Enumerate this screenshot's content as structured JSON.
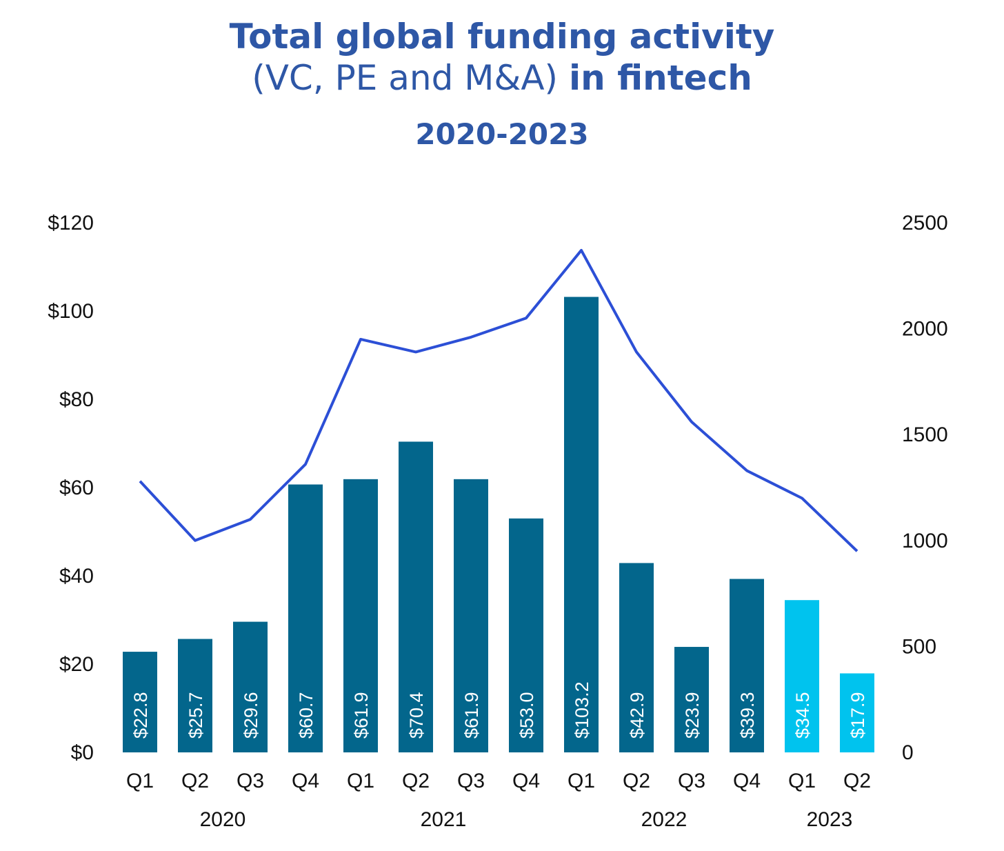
{
  "title": {
    "line1": "Total global funding activity",
    "line2_regular": "(VC, PE and M&A)",
    "line2_bold": "in fintech",
    "subtitle": "2020-2023"
  },
  "colors": {
    "title": "#2e57a6",
    "bar": "#03668c",
    "bar_highlight": "#00c3ee",
    "line": "#2c4fd6"
  },
  "chart_data": {
    "type": "bar",
    "categories": [
      "Q1",
      "Q2",
      "Q3",
      "Q4",
      "Q1",
      "Q2",
      "Q3",
      "Q4",
      "Q1",
      "Q2",
      "Q3",
      "Q4",
      "Q1",
      "Q2"
    ],
    "year_groups": [
      {
        "label": "2020",
        "start": 0,
        "end": 3
      },
      {
        "label": "2021",
        "start": 4,
        "end": 7
      },
      {
        "label": "2022",
        "start": 8,
        "end": 11
      },
      {
        "label": "2023",
        "start": 12,
        "end": 13
      }
    ],
    "series": [
      {
        "type": "bar",
        "axis": "left",
        "values": [
          22.8,
          25.7,
          29.6,
          60.7,
          61.9,
          70.4,
          61.9,
          53.0,
          103.2,
          42.9,
          23.9,
          39.3,
          34.5,
          17.9
        ],
        "labels": [
          "$22.8",
          "$25.7",
          "$29.6",
          "$60.7",
          "$61.9",
          "$70.4",
          "$61.9",
          "$53.0",
          "$103.2",
          "$42.9",
          "$23.9",
          "$39.3",
          "$34.5",
          "$17.9"
        ],
        "highlight_from_index": 12
      },
      {
        "type": "line",
        "axis": "right",
        "values": [
          1280,
          1000,
          1100,
          1360,
          1950,
          1890,
          1960,
          2050,
          2370,
          1890,
          1560,
          1330,
          1200,
          950
        ]
      }
    ],
    "y_left": {
      "ticks": [
        "$0",
        "$20",
        "$40",
        "$60",
        "$80",
        "$100",
        "$120"
      ],
      "min": 0,
      "max": 120,
      "step": 20
    },
    "y_right": {
      "ticks": [
        "0",
        "500",
        "1000",
        "1500",
        "2000",
        "2500"
      ],
      "min": 0,
      "max": 2500,
      "step": 500
    },
    "grid": false,
    "legend": "none"
  }
}
